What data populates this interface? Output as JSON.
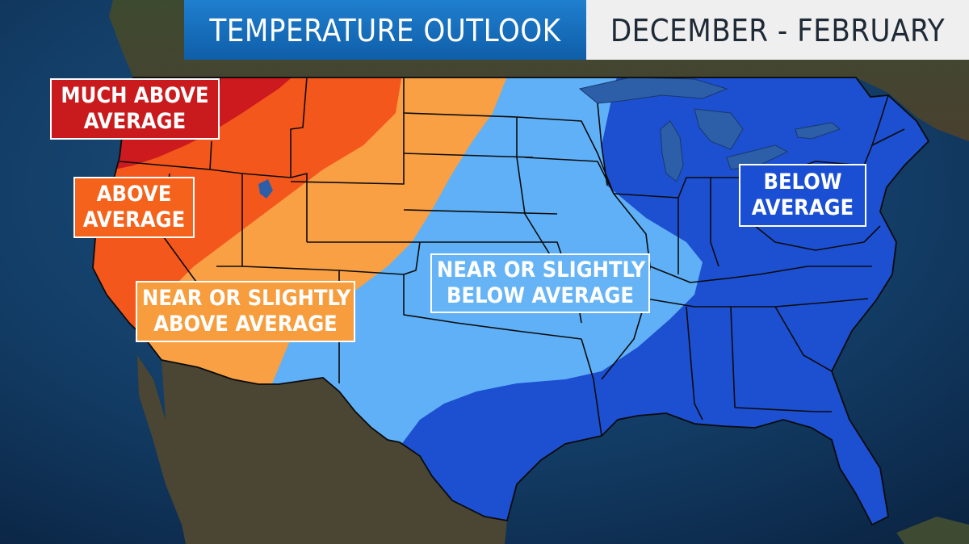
{
  "header": {
    "title": "TEMPERATURE OUTLOOK",
    "period": "DECEMBER - FEBRUARY"
  },
  "legend_labels": {
    "much_above": [
      "MUCH ABOVE",
      "AVERAGE"
    ],
    "above": [
      "ABOVE",
      "AVERAGE"
    ],
    "near_above": [
      "NEAR OR SLIGHTLY",
      "ABOVE AVERAGE"
    ],
    "near_below": [
      "NEAR OR SLIGHTLY",
      "BELOW AVERAGE"
    ],
    "below": [
      "BELOW",
      "AVERAGE"
    ]
  },
  "colors": {
    "ocean": "#123b63",
    "land": "#3a3d2a",
    "much_above": "#cc1a1f",
    "above": "#f4571c",
    "near_above": "#f9a044",
    "near_below": "#5fb0f6",
    "below": "#1d4fd1",
    "header_blue": "#1670be",
    "header_gray": "#efefef"
  }
}
